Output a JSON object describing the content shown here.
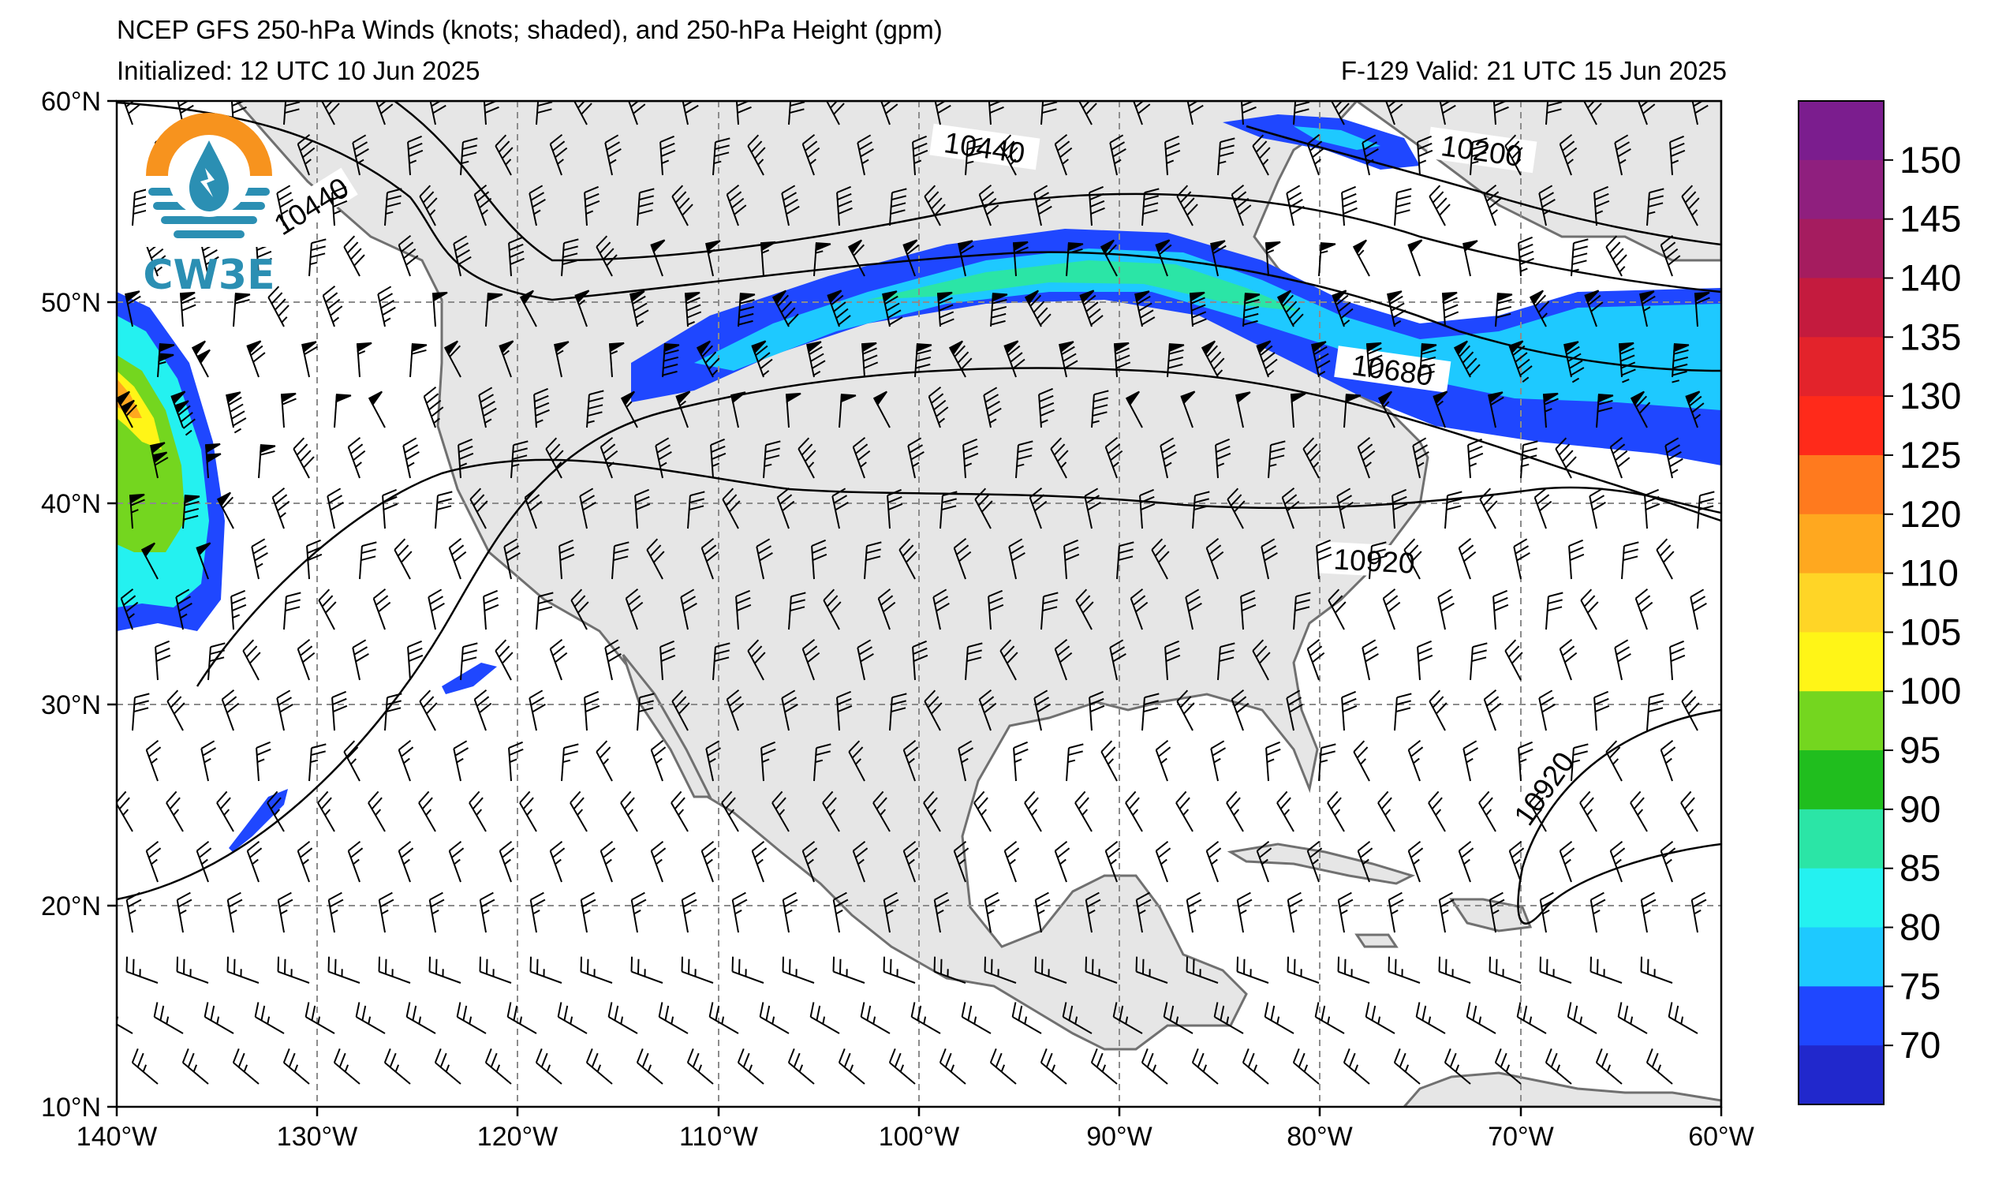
{
  "header": {
    "title": "NCEP GFS 250-hPa Winds (knots; shaded), and 250-hPa Height (gpm)",
    "initialized": "Initialized: 12 UTC 10 Jun 2025",
    "valid": "F-129  Valid: 21 UTC 15 Jun 2025"
  },
  "logo": {
    "text": "CW3E"
  },
  "map": {
    "lon_labels": [
      "140°W",
      "130°W",
      "120°W",
      "110°W",
      "100°W",
      "90°W",
      "80°W",
      "70°W",
      "60°W"
    ],
    "lat_labels": [
      "60°N",
      "50°N",
      "40°N",
      "30°N",
      "20°N",
      "10°N"
    ],
    "contour_labels": [
      "10440",
      "10440",
      "10200",
      "10680",
      "10920",
      "10920"
    ],
    "colors": {
      "land": "#e6e6e6",
      "coast": "#707070",
      "grid": "#8c8c8c"
    }
  },
  "colorbar": {
    "labels": [
      "150",
      "145",
      "140",
      "135",
      "130",
      "125",
      "120",
      "110",
      "105",
      "100",
      "95",
      "90",
      "85",
      "80",
      "75",
      "70"
    ],
    "colors": [
      "#7b1d8e",
      "#8f1f7e",
      "#a51c5f",
      "#c41b3e",
      "#e3232b",
      "#ff2a1a",
      "#ff7a1e",
      "#ffa81f",
      "#ffd526",
      "#fff517",
      "#74d61f",
      "#20be1e",
      "#2be5a6",
      "#24f1f0",
      "#1ec9ff",
      "#1f47ff",
      "#2128cc"
    ]
  }
}
